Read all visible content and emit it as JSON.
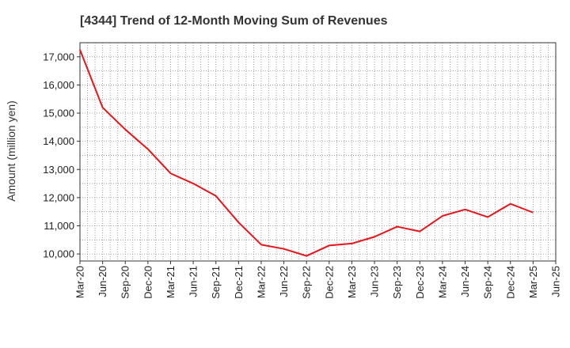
{
  "chart_data": {
    "type": "line",
    "title": "[4344]  Trend of 12-Month Moving Sum of Revenues",
    "xlabel": "",
    "ylabel": "Amount (million yen)",
    "x": [
      "Mar-20",
      "Jun-20",
      "Sep-20",
      "Dec-20",
      "Mar-21",
      "Jun-21",
      "Sep-21",
      "Dec-21",
      "Mar-22",
      "Jun-22",
      "Sep-22",
      "Dec-22",
      "Mar-23",
      "Jun-23",
      "Sep-23",
      "Dec-23",
      "Mar-24",
      "Jun-24",
      "Sep-24",
      "Dec-24",
      "Mar-25",
      "Jun-25"
    ],
    "x_tick_labels": [
      "Mar-20",
      "Jun-20",
      "Sep-20",
      "Dec-20",
      "Mar-21",
      "Jun-21",
      "Sep-21",
      "Dec-21",
      "Mar-22",
      "Jun-22",
      "Sep-22",
      "Dec-22",
      "Mar-23",
      "Jun-23",
      "Sep-23",
      "Dec-23",
      "Mar-24",
      "Jun-24",
      "Sep-24",
      "Dec-24",
      "Mar-25",
      "Jun-25"
    ],
    "y_tick_values": [
      10000,
      11000,
      12000,
      13000,
      14000,
      15000,
      16000,
      17000
    ],
    "y_tick_labels": [
      "10,000",
      "11,000",
      "12,000",
      "13,000",
      "14,000",
      "15,000",
      "16,000",
      "17,000"
    ],
    "ylim": [
      9750,
      17500
    ],
    "grid": true,
    "series": [
      {
        "color": "#e8141b",
        "values": [
          17250,
          15200,
          14420,
          13720,
          12860,
          12500,
          12060,
          11120,
          10330,
          10180,
          9930,
          10300,
          10370,
          10610,
          10970,
          10800,
          11350,
          11580,
          11310,
          11780,
          11470,
          null
        ]
      }
    ]
  }
}
